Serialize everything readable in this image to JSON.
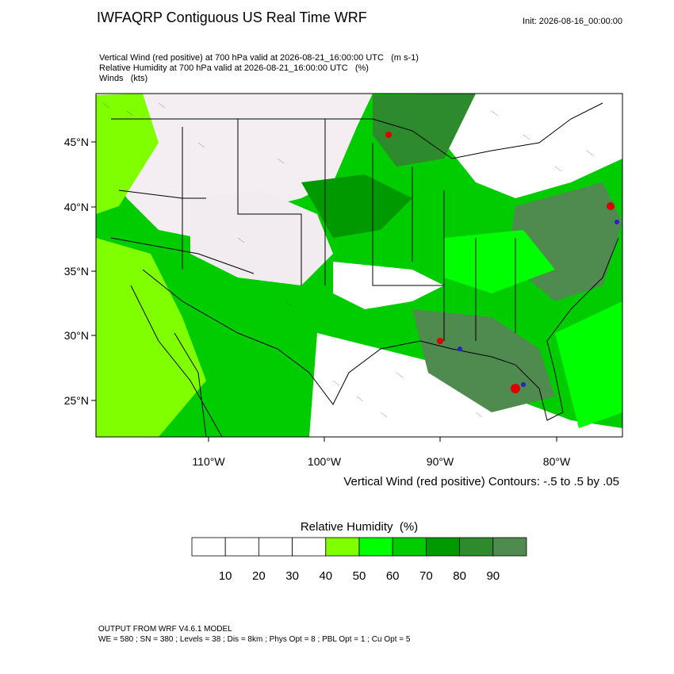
{
  "header": {
    "title": "IWFAQRP Contiguous US Real Time WRF",
    "init": "Init: 2026-08-16_00:00:00"
  },
  "fields": [
    "Vertical Wind (red positive) at 700 hPa valid at 2026-08-21_16:00:00 UTC   (m s-1)",
    "Relative Humidity at 700 hPa valid at 2026-08-21_16:00:00 UTC   (%)",
    "Winds   (kts)"
  ],
  "map": {
    "lat_labels": [
      "45°N",
      "40°N",
      "35°N",
      "30°N",
      "25°N"
    ],
    "lon_labels": [
      "110°W",
      "100°W",
      "90°W",
      "80°W"
    ],
    "contour_note": "Vertical Wind (red positive) Contours: -.5 to .5 by .05"
  },
  "colorbar": {
    "title": "Relative Humidity  (%)",
    "labels": [
      "10",
      "20",
      "30",
      "40",
      "50",
      "60",
      "70",
      "80",
      "90"
    ],
    "colors": [
      "#ffffff",
      "#ffffff",
      "#ffffff",
      "#ffffff",
      "#80ff00",
      "#00ff00",
      "#00cc00",
      "#009900",
      "#2d8b2d",
      "#4f8a4f"
    ]
  },
  "footer": [
    "OUTPUT FROM WRF V4.6.1 MODEL",
    "WE = 580 ; SN = 380 ; Levels = 38 ; Dis = 8km ; Phys Opt = 8 ; PBL Opt = 1 ; Cu Opt = 5"
  ]
}
